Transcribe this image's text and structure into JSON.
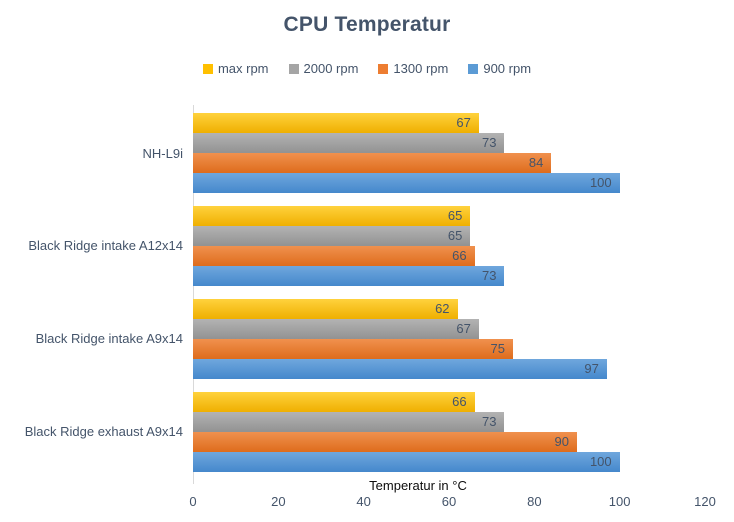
{
  "chart_data": {
    "type": "bar",
    "orientation": "horizontal",
    "title": "CPU Temperatur",
    "xlabel": "Temperatur in °C",
    "ylabel": "",
    "xlim": [
      0,
      120
    ],
    "xticks": [
      0,
      20,
      40,
      60,
      80,
      100,
      120
    ],
    "grid": false,
    "legend_position": "top",
    "value_labels": "inside-end",
    "categories": [
      "NH-L9i",
      "Black Ridge intake A12x14",
      "Black Ridge intake A9x14",
      "Black Ridge exhaust A9x14"
    ],
    "series": [
      {
        "name": "max rpm",
        "color": "#FFC000",
        "light": "#FFD23D",
        "dark": "#EFAF00",
        "values": [
          67,
          65,
          62,
          66
        ]
      },
      {
        "name": "2000 rpm",
        "color": "#A5A5A5",
        "light": "#B3B3B3",
        "dark": "#929292",
        "values": [
          73,
          65,
          67,
          73
        ]
      },
      {
        "name": "1300 rpm",
        "color": "#ED7D31",
        "light": "#F0914E",
        "dark": "#DE6C1C",
        "values": [
          84,
          66,
          75,
          90
        ]
      },
      {
        "name": "900 rpm",
        "color": "#5B9BD5",
        "light": "#6FA7DD",
        "dark": "#4588CC",
        "values": [
          100,
          73,
          97,
          100
        ]
      }
    ],
    "series_order_note": "bars drawn top-to-bottom per category: max rpm, 2000 rpm, 1300 rpm, 900 rpm",
    "text_colors": {
      "title": "#44546A",
      "category_labels": "#44546A",
      "value_labels": "#44546A",
      "tick_labels": "#44546A",
      "axis_title": "#0D0D0D",
      "axis_line": "#D9D9D9"
    }
  }
}
